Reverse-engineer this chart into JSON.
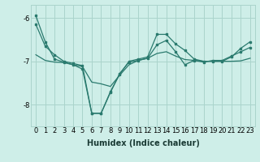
{
  "xlabel": "Humidex (Indice chaleur)",
  "bg_color": "#ceeee8",
  "grid_color": "#aad4cc",
  "line_color": "#2a7a6e",
  "x": [
    0,
    1,
    2,
    3,
    4,
    5,
    6,
    7,
    8,
    9,
    10,
    11,
    12,
    13,
    14,
    15,
    16,
    17,
    18,
    19,
    20,
    21,
    22,
    23
  ],
  "line1": [
    -6.15,
    -6.65,
    -6.85,
    -7.0,
    -7.05,
    -7.1,
    -8.2,
    -8.2,
    -7.7,
    -7.3,
    -7.0,
    -6.95,
    -6.9,
    -6.38,
    -6.38,
    -6.6,
    -6.75,
    -6.95,
    -7.0,
    -7.0,
    -7.0,
    -6.9,
    -6.7,
    -6.55
  ],
  "line2": [
    -5.95,
    -6.55,
    -6.95,
    -7.02,
    -7.08,
    -7.18,
    -8.2,
    -8.2,
    -7.72,
    -7.28,
    -7.02,
    -6.98,
    -6.93,
    -6.62,
    -6.52,
    -6.78,
    -7.08,
    -6.98,
    -7.02,
    -6.98,
    -6.98,
    -6.88,
    -6.78,
    -6.68
  ],
  "line3": [
    -6.85,
    -6.98,
    -7.02,
    -7.03,
    -7.08,
    -7.12,
    -7.48,
    -7.52,
    -7.58,
    -7.32,
    -7.08,
    -6.98,
    -6.93,
    -6.82,
    -6.78,
    -6.88,
    -6.96,
    -6.98,
    -7.0,
    -7.0,
    -7.0,
    -7.0,
    -6.99,
    -6.93
  ],
  "ylim": [
    -8.5,
    -5.7
  ],
  "yticks": [
    -8,
    -7,
    -6
  ],
  "xticks": [
    0,
    1,
    2,
    3,
    4,
    5,
    6,
    7,
    8,
    9,
    10,
    11,
    12,
    13,
    14,
    15,
    16,
    17,
    18,
    19,
    20,
    21,
    22,
    23
  ],
  "tick_fontsize": 6.0,
  "xlabel_fontsize": 7.0
}
